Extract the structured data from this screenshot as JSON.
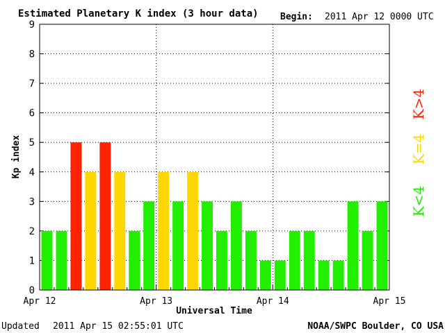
{
  "header": {
    "title": "Estimated Planetary K index (3 hour data)",
    "begin_label": "Begin:",
    "begin_value": "2011 Apr 12 0000 UTC"
  },
  "footer": {
    "updated_label": "Updated",
    "updated_value": "2011 Apr 15 02:55:01 UTC",
    "source": "NOAA/SWPC Boulder, CO USA"
  },
  "legend": {
    "high": "K>4",
    "equal": "K=4",
    "low": "K<4"
  },
  "colors": {
    "low": "#22ee00",
    "equal": "#ffd700",
    "high": "#ff2200"
  },
  "chart_data": {
    "type": "bar",
    "title": "Estimated Planetary K index (3 hour data)",
    "xlabel": "Universal Time",
    "ylabel": "Kp index",
    "ylim": [
      0,
      9
    ],
    "yticks": [
      0,
      1,
      2,
      3,
      4,
      5,
      6,
      7,
      8,
      9
    ],
    "x_tick_labels": [
      "Apr 12",
      "Apr 13",
      "Apr 14",
      "Apr 15"
    ],
    "grid": true,
    "values": [
      2,
      2,
      5,
      4,
      5,
      4,
      2,
      3,
      4,
      3,
      4,
      3,
      2,
      3,
      2,
      1,
      1,
      2,
      2,
      1,
      1,
      3,
      2,
      3
    ]
  }
}
